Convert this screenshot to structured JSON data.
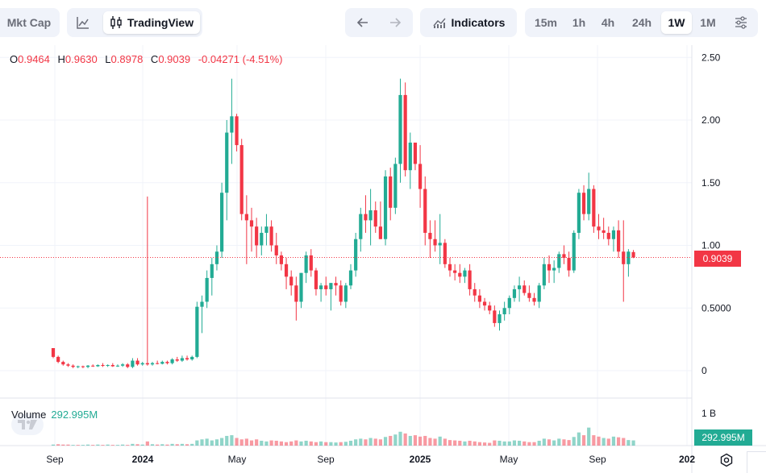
{
  "toolbar": {
    "mkt_cap_label": "Mkt Cap",
    "tradingview_label": "TradingView",
    "indicators_label": "Indicators",
    "intervals": [
      "15m",
      "1h",
      "4h",
      "24h",
      "1W",
      "1M"
    ],
    "active_interval": "1W",
    "icons": [
      "line-chart-icon",
      "candlestick-icon",
      "arrow-left-icon",
      "arrow-right-icon",
      "indicators-icon",
      "settings-sliders-icon"
    ]
  },
  "ohlc": {
    "o_key": "O",
    "o_val": "0.9464",
    "h_key": "H",
    "h_val": "0.9630",
    "l_key": "L",
    "l_val": "0.8978",
    "c_key": "C",
    "c_val": "0.9039",
    "change": "-0.04271 (-4.51%)"
  },
  "volume": {
    "label": "Volume",
    "value": "292.995M",
    "axis_label": "1 B"
  },
  "last_price_label": "0.9039",
  "colors": {
    "up": "#22ab94",
    "down": "#f23645",
    "grid": "#f0f3fa",
    "axis_text": "#131722"
  },
  "chart_data": {
    "type": "candlestick",
    "interval": "1W",
    "y_ticks": [
      "0",
      "0.5000",
      "1.00",
      "1.50",
      "2.00",
      "2.50"
    ],
    "ylim": [
      0,
      2.5
    ],
    "x_ticks": [
      "Sep",
      "2024",
      "May",
      "Sep",
      "2025",
      "May",
      "Sep",
      "202"
    ],
    "last_price": 0.9039,
    "last_price_line": true,
    "grid": true,
    "candles": [
      [
        0.18,
        0.18,
        0.1,
        0.11
      ],
      [
        0.11,
        0.12,
        0.06,
        0.07
      ],
      [
        0.07,
        0.08,
        0.04,
        0.05
      ],
      [
        0.05,
        0.06,
        0.03,
        0.04
      ],
      [
        0.04,
        0.05,
        0.02,
        0.03
      ],
      [
        0.03,
        0.04,
        0.02,
        0.035
      ],
      [
        0.035,
        0.04,
        0.02,
        0.03
      ],
      [
        0.03,
        0.045,
        0.02,
        0.04
      ],
      [
        0.04,
        0.05,
        0.03,
        0.035
      ],
      [
        0.035,
        0.05,
        0.03,
        0.045
      ],
      [
        0.045,
        0.06,
        0.03,
        0.04
      ],
      [
        0.04,
        0.05,
        0.03,
        0.045
      ],
      [
        0.045,
        0.06,
        0.03,
        0.035
      ],
      [
        0.035,
        0.05,
        0.03,
        0.04
      ],
      [
        0.04,
        0.06,
        0.03,
        0.05
      ],
      [
        0.05,
        0.06,
        0.02,
        0.03
      ],
      [
        0.03,
        0.1,
        0.02,
        0.08
      ],
      [
        0.08,
        0.1,
        0.04,
        0.05
      ],
      [
        0.05,
        0.07,
        0.04,
        0.06
      ],
      [
        0.06,
        1.39,
        0.04,
        0.05
      ],
      [
        0.05,
        0.07,
        0.04,
        0.06
      ],
      [
        0.06,
        0.08,
        0.05,
        0.055
      ],
      [
        0.055,
        0.08,
        0.05,
        0.07
      ],
      [
        0.07,
        0.08,
        0.05,
        0.06
      ],
      [
        0.06,
        0.1,
        0.05,
        0.09
      ],
      [
        0.09,
        0.11,
        0.07,
        0.08
      ],
      [
        0.08,
        0.12,
        0.07,
        0.1
      ],
      [
        0.1,
        0.12,
        0.08,
        0.09
      ],
      [
        0.09,
        0.12,
        0.08,
        0.11
      ],
      [
        0.11,
        0.55,
        0.1,
        0.51
      ],
      [
        0.51,
        0.6,
        0.3,
        0.55
      ],
      [
        0.55,
        0.8,
        0.5,
        0.74
      ],
      [
        0.74,
        0.9,
        0.6,
        0.85
      ],
      [
        0.85,
        1.0,
        0.8,
        0.95
      ],
      [
        0.95,
        1.5,
        0.9,
        1.42
      ],
      [
        1.42,
        2.0,
        1.2,
        1.9
      ],
      [
        1.9,
        2.33,
        1.65,
        2.03
      ],
      [
        2.03,
        2.05,
        1.75,
        1.8
      ],
      [
        1.8,
        1.85,
        1.2,
        1.25
      ],
      [
        1.25,
        1.4,
        0.85,
        1.2
      ],
      [
        1.2,
        1.3,
        0.95,
        1.15
      ],
      [
        1.15,
        1.22,
        0.9,
        1.0
      ],
      [
        1.0,
        1.15,
        0.92,
        1.1
      ],
      [
        1.1,
        1.25,
        1.0,
        1.15
      ],
      [
        1.15,
        1.2,
        0.95,
        1.0
      ],
      [
        1.0,
        1.1,
        0.85,
        0.92
      ],
      [
        0.92,
        0.95,
        0.8,
        0.85
      ],
      [
        0.85,
        0.9,
        0.65,
        0.75
      ],
      [
        0.75,
        0.8,
        0.6,
        0.68
      ],
      [
        0.68,
        0.75,
        0.4,
        0.55
      ],
      [
        0.55,
        0.78,
        0.5,
        0.78
      ],
      [
        0.78,
        0.95,
        0.7,
        0.92
      ],
      [
        0.92,
        0.97,
        0.75,
        0.8
      ],
      [
        0.8,
        0.82,
        0.6,
        0.65
      ],
      [
        0.65,
        0.7,
        0.55,
        0.68
      ],
      [
        0.68,
        0.75,
        0.6,
        0.65
      ],
      [
        0.65,
        0.7,
        0.48,
        0.7
      ],
      [
        0.7,
        0.75,
        0.6,
        0.68
      ],
      [
        0.68,
        0.72,
        0.52,
        0.55
      ],
      [
        0.55,
        0.7,
        0.5,
        0.68
      ],
      [
        0.68,
        0.85,
        0.65,
        0.8
      ],
      [
        0.8,
        1.1,
        0.75,
        1.05
      ],
      [
        1.05,
        1.3,
        0.95,
        1.25
      ],
      [
        1.25,
        1.4,
        1.1,
        1.2
      ],
      [
        1.2,
        1.45,
        1.0,
        1.28
      ],
      [
        1.28,
        1.35,
        1.1,
        1.15
      ],
      [
        1.15,
        1.35,
        1.05,
        1.05
      ],
      [
        1.05,
        1.6,
        1.0,
        1.55
      ],
      [
        1.55,
        1.62,
        1.2,
        1.3
      ],
      [
        1.3,
        1.7,
        1.25,
        1.65
      ],
      [
        1.65,
        2.33,
        1.5,
        2.2
      ],
      [
        2.2,
        2.3,
        1.55,
        1.6
      ],
      [
        1.6,
        1.9,
        1.45,
        1.82
      ],
      [
        1.82,
        1.82,
        1.6,
        1.65
      ],
      [
        1.65,
        1.8,
        1.3,
        1.45
      ],
      [
        1.45,
        1.55,
        1.0,
        1.1
      ],
      [
        1.1,
        1.2,
        0.9,
        1.05
      ],
      [
        1.05,
        1.2,
        0.95,
        1.0
      ],
      [
        1.0,
        1.25,
        0.85,
        1.02
      ],
      [
        1.02,
        1.05,
        0.82,
        0.85
      ],
      [
        0.85,
        0.9,
        0.75,
        0.8
      ],
      [
        0.8,
        0.85,
        0.72,
        0.78
      ],
      [
        0.78,
        0.85,
        0.7,
        0.75
      ],
      [
        0.75,
        0.82,
        0.7,
        0.8
      ],
      [
        0.8,
        0.85,
        0.6,
        0.65
      ],
      [
        0.65,
        0.7,
        0.55,
        0.6
      ],
      [
        0.6,
        0.65,
        0.5,
        0.55
      ],
      [
        0.55,
        0.58,
        0.48,
        0.52
      ],
      [
        0.52,
        0.55,
        0.45,
        0.48
      ],
      [
        0.48,
        0.52,
        0.35,
        0.38
      ],
      [
        0.38,
        0.48,
        0.32,
        0.45
      ],
      [
        0.45,
        0.55,
        0.4,
        0.5
      ],
      [
        0.5,
        0.6,
        0.45,
        0.58
      ],
      [
        0.58,
        0.68,
        0.55,
        0.65
      ],
      [
        0.65,
        0.75,
        0.55,
        0.68
      ],
      [
        0.68,
        0.72,
        0.6,
        0.62
      ],
      [
        0.62,
        0.68,
        0.55,
        0.58
      ],
      [
        0.58,
        0.62,
        0.52,
        0.55
      ],
      [
        0.55,
        0.7,
        0.5,
        0.68
      ],
      [
        0.68,
        0.9,
        0.65,
        0.85
      ],
      [
        0.85,
        0.92,
        0.7,
        0.8
      ],
      [
        0.8,
        0.88,
        0.7,
        0.82
      ],
      [
        0.82,
        0.95,
        0.78,
        0.93
      ],
      [
        0.93,
        1.0,
        0.85,
        0.9
      ],
      [
        0.9,
        0.95,
        0.75,
        0.8
      ],
      [
        0.8,
        1.12,
        0.78,
        1.1
      ],
      [
        1.1,
        1.45,
        1.05,
        1.42
      ],
      [
        1.42,
        1.48,
        1.2,
        1.25
      ],
      [
        1.25,
        1.58,
        1.2,
        1.45
      ],
      [
        1.45,
        1.48,
        1.1,
        1.15
      ],
      [
        1.15,
        1.25,
        1.05,
        1.12
      ],
      [
        1.12,
        1.22,
        1.05,
        1.1
      ],
      [
        1.1,
        1.15,
        1.0,
        1.05
      ],
      [
        1.05,
        1.15,
        0.95,
        1.12
      ],
      [
        1.12,
        1.2,
        0.9,
        0.95
      ],
      [
        0.95,
        1.2,
        0.55,
        0.85
      ],
      [
        0.85,
        0.97,
        0.75,
        0.95
      ],
      [
        0.9464,
        0.963,
        0.8978,
        0.9039
      ]
    ],
    "volume": [
      [
        0.03,
        1
      ],
      [
        0.04,
        0
      ],
      [
        0.03,
        0
      ],
      [
        0.03,
        0
      ],
      [
        0.02,
        1
      ],
      [
        0.02,
        0
      ],
      [
        0.02,
        1
      ],
      [
        0.03,
        1
      ],
      [
        0.02,
        0
      ],
      [
        0.03,
        1
      ],
      [
        0.02,
        0
      ],
      [
        0.03,
        1
      ],
      [
        0.02,
        0
      ],
      [
        0.02,
        1
      ],
      [
        0.03,
        1
      ],
      [
        0.02,
        0
      ],
      [
        0.05,
        1
      ],
      [
        0.04,
        0
      ],
      [
        0.03,
        1
      ],
      [
        0.12,
        0
      ],
      [
        0.04,
        1
      ],
      [
        0.03,
        0
      ],
      [
        0.04,
        1
      ],
      [
        0.03,
        0
      ],
      [
        0.05,
        1
      ],
      [
        0.04,
        0
      ],
      [
        0.05,
        1
      ],
      [
        0.04,
        0
      ],
      [
        0.05,
        1
      ],
      [
        0.15,
        1
      ],
      [
        0.18,
        1
      ],
      [
        0.2,
        1
      ],
      [
        0.15,
        1
      ],
      [
        0.18,
        1
      ],
      [
        0.22,
        1
      ],
      [
        0.28,
        1
      ],
      [
        0.3,
        1
      ],
      [
        0.22,
        0
      ],
      [
        0.18,
        0
      ],
      [
        0.2,
        0
      ],
      [
        0.15,
        0
      ],
      [
        0.18,
        0
      ],
      [
        0.14,
        1
      ],
      [
        0.12,
        1
      ],
      [
        0.15,
        0
      ],
      [
        0.14,
        0
      ],
      [
        0.12,
        0
      ],
      [
        0.1,
        0
      ],
      [
        0.12,
        0
      ],
      [
        0.15,
        0
      ],
      [
        0.12,
        1
      ],
      [
        0.14,
        1
      ],
      [
        0.12,
        0
      ],
      [
        0.1,
        0
      ],
      [
        0.12,
        1
      ],
      [
        0.1,
        0
      ],
      [
        0.1,
        1
      ],
      [
        0.09,
        1
      ],
      [
        0.1,
        0
      ],
      [
        0.11,
        1
      ],
      [
        0.14,
        1
      ],
      [
        0.18,
        1
      ],
      [
        0.2,
        1
      ],
      [
        0.18,
        0
      ],
      [
        0.22,
        1
      ],
      [
        0.2,
        0
      ],
      [
        0.18,
        0
      ],
      [
        0.25,
        1
      ],
      [
        0.28,
        0
      ],
      [
        0.32,
        1
      ],
      [
        0.4,
        1
      ],
      [
        0.35,
        0
      ],
      [
        0.28,
        1
      ],
      [
        0.3,
        0
      ],
      [
        0.26,
        0
      ],
      [
        0.28,
        0
      ],
      [
        0.22,
        0
      ],
      [
        0.2,
        0
      ],
      [
        0.26,
        1
      ],
      [
        0.2,
        0
      ],
      [
        0.16,
        0
      ],
      [
        0.15,
        0
      ],
      [
        0.14,
        0
      ],
      [
        0.12,
        1
      ],
      [
        0.14,
        0
      ],
      [
        0.12,
        0
      ],
      [
        0.1,
        0
      ],
      [
        0.09,
        0
      ],
      [
        0.08,
        0
      ],
      [
        0.15,
        0
      ],
      [
        0.14,
        1
      ],
      [
        0.12,
        1
      ],
      [
        0.12,
        1
      ],
      [
        0.15,
        1
      ],
      [
        0.14,
        1
      ],
      [
        0.12,
        0
      ],
      [
        0.1,
        0
      ],
      [
        0.1,
        0
      ],
      [
        0.14,
        1
      ],
      [
        0.2,
        1
      ],
      [
        0.18,
        0
      ],
      [
        0.15,
        1
      ],
      [
        0.2,
        1
      ],
      [
        0.18,
        0
      ],
      [
        0.16,
        0
      ],
      [
        0.25,
        1
      ],
      [
        0.38,
        1
      ],
      [
        0.3,
        0
      ],
      [
        0.52,
        1
      ],
      [
        0.3,
        0
      ],
      [
        0.26,
        0
      ],
      [
        0.22,
        1
      ],
      [
        0.2,
        0
      ],
      [
        0.26,
        1
      ],
      [
        0.24,
        0
      ],
      [
        0.22,
        0
      ],
      [
        0.16,
        1
      ],
      [
        0.15,
        1
      ]
    ]
  }
}
